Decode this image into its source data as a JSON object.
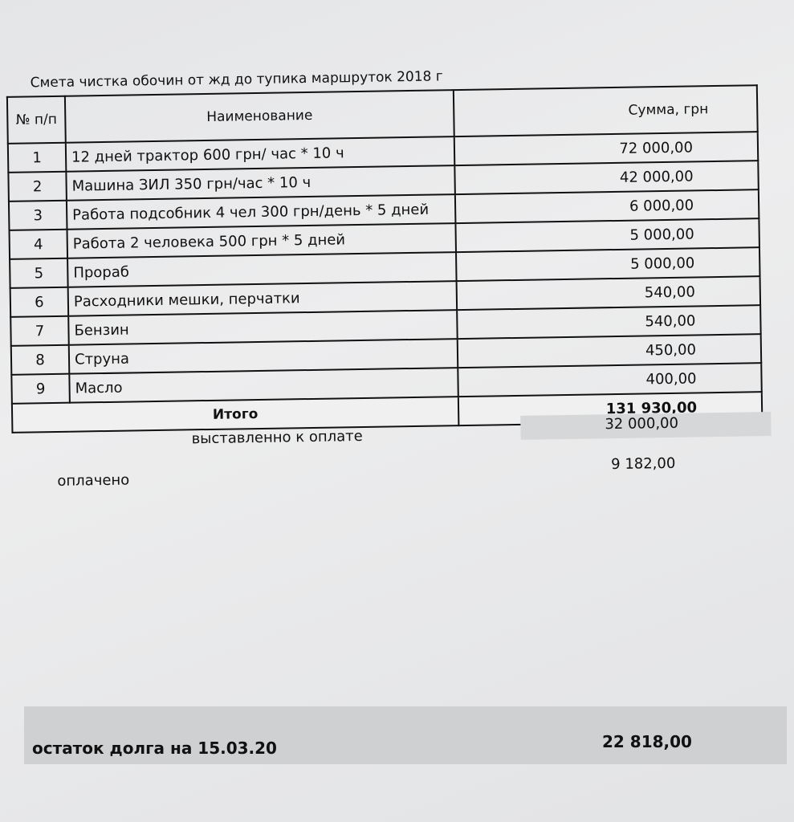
{
  "title": "Смета чистка обочин от жд до тупика маршруток 2018 г",
  "table": {
    "headers": {
      "num": "№ п/п",
      "name": "Наименование",
      "sum": "Сумма, грн"
    },
    "rows": [
      {
        "num": "1",
        "name": "12 дней трактор 600 грн/ час * 10 ч",
        "sum": "72 000,00"
      },
      {
        "num": "2",
        "name": "Машина ЗИЛ 350 грн/час * 10 ч",
        "sum": "42 000,00"
      },
      {
        "num": "3",
        "name": "Работа подсобник 4 чел 300 грн/день * 5 дней",
        "sum": "6 000,00"
      },
      {
        "num": "4",
        "name": "Работа 2 человека 500 грн * 5 дней",
        "sum": "5 000,00"
      },
      {
        "num": "5",
        "name": "Прораб",
        "sum": "5 000,00"
      },
      {
        "num": "6",
        "name": "Расходники мешки, перчатки",
        "sum": "540,00"
      },
      {
        "num": "7",
        "name": "Бензин",
        "sum": "540,00"
      },
      {
        "num": "8",
        "name": "Струна",
        "sum": "450,00"
      },
      {
        "num": "9",
        "name": "Масло",
        "sum": "400,00"
      }
    ],
    "total_label": "Итого",
    "total_value": "131 930,00"
  },
  "invoiced": {
    "label": "выставленно к оплате",
    "value": "32 000,00"
  },
  "paid": {
    "label": "оплачено",
    "value": "9 182,00"
  },
  "debt": {
    "label": "остаток долга на 15.03.20",
    "value": "22 818,00"
  }
}
